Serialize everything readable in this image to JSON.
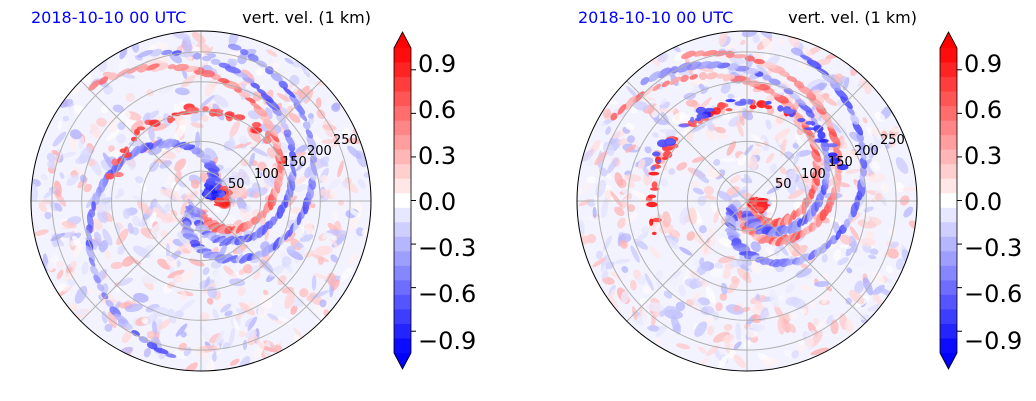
{
  "figure": {
    "panels": [
      {
        "time_label": "2018-10-10 00 UTC",
        "variable_label": "vert. vel. (1 km)"
      },
      {
        "time_label": "2018-10-10 00 UTC",
        "variable_label": "vert. vel. (1 km)"
      }
    ],
    "colorbar": {
      "tick_labels": [
        "0.9",
        "0.6",
        "0.3",
        "0.0",
        "−0.3",
        "−0.6",
        "−0.9"
      ],
      "ticks": [
        0.9,
        0.6,
        0.3,
        0.0,
        -0.3,
        -0.6,
        -0.9
      ],
      "range": [
        -1.05,
        1.05
      ],
      "extend": "both",
      "colormap": "bwr",
      "colors": {
        "negative": "#0000ff",
        "zero": "#ffffff",
        "positive": "#ff0000"
      }
    },
    "title_color": "#0000ff"
  },
  "chart_data": [
    {
      "type": "heatmap",
      "projection": "polar",
      "title": "2018-10-10 00 UTC",
      "subtitle": "vert. vel. (1 km)",
      "radial_tick_labels": [
        "50",
        "100",
        "150",
        "200",
        "250"
      ],
      "radial_ticks": [
        50,
        100,
        150,
        200,
        250
      ],
      "radial_label_angle_deg": 22.5,
      "angular_gridlines_deg": [
        0,
        45,
        90,
        135,
        180,
        225,
        270,
        315
      ],
      "grid": true,
      "color_range": [
        -1.05,
        1.05
      ],
      "features": [
        {
          "description": "updraft ring",
          "r": 152,
          "theta_deg": 95,
          "w": 0.9
        },
        {
          "description": "core updrafts",
          "r": 35,
          "theta_deg": 10,
          "w": 1.0
        },
        {
          "description": "core downdraft",
          "r": 25,
          "theta_deg": 40,
          "w": -1.0
        }
      ]
    },
    {
      "type": "heatmap",
      "projection": "polar",
      "title": "2018-10-10 00 UTC",
      "subtitle": "vert. vel. (1 km)",
      "radial_tick_labels": [
        "50",
        "100",
        "150",
        "200",
        "250"
      ],
      "radial_ticks": [
        50,
        100,
        150,
        200,
        250
      ],
      "radial_label_angle_deg": 22.5,
      "angular_gridlines_deg": [
        0,
        45,
        90,
        135,
        180,
        225,
        270,
        315
      ],
      "grid": true,
      "color_range": [
        -1.05,
        1.05
      ],
      "features": [
        {
          "description": "core updraft",
          "r": 20,
          "theta_deg": -20,
          "w": 1.0
        },
        {
          "description": "outer rainbands",
          "r": 160,
          "theta_deg": 135,
          "w": 1.0
        },
        {
          "description": "outer downdrafts",
          "r": 165,
          "theta_deg": 90,
          "w": -0.9
        }
      ]
    }
  ]
}
